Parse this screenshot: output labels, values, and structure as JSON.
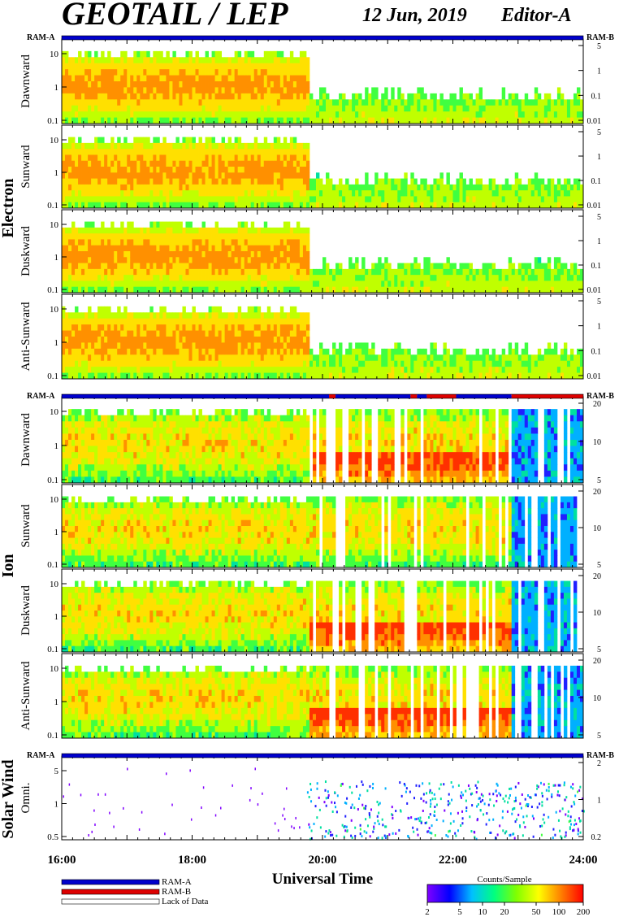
{
  "header": {
    "title": "GEOTAIL / LEP",
    "date": "12 Jun, 2019",
    "editor": "Editor-A"
  },
  "ram_labels": {
    "ram_a": "RAM-A",
    "ram_b": "RAM-B"
  },
  "groups": [
    {
      "id": "electron",
      "label": "Electron"
    },
    {
      "id": "ion",
      "label": "Ion"
    },
    {
      "id": "solarwind",
      "label": "Solar Wind"
    }
  ],
  "chart_data": {
    "type": "heatmap",
    "xlabel": "Universal Time",
    "x_ticks": [
      "16:00",
      "18:00",
      "20:00",
      "22:00",
      "24:00"
    ],
    "x_range_hours": [
      16,
      24
    ],
    "panels": [
      {
        "group": "electron",
        "direction": "Dawnward",
        "left_ticks": [
          "10",
          "1",
          "0.1"
        ],
        "right_ticks": [
          "5",
          "1",
          "0.1",
          "0.01"
        ]
      },
      {
        "group": "electron",
        "direction": "Sunward",
        "left_ticks": [
          "10",
          "1",
          "0.1"
        ],
        "right_ticks": [
          "5",
          "1",
          "0.1",
          "0.01"
        ]
      },
      {
        "group": "electron",
        "direction": "Duskward",
        "left_ticks": [
          "10",
          "1",
          "0.1"
        ],
        "right_ticks": [
          "5",
          "1",
          "0.1",
          "0.01"
        ]
      },
      {
        "group": "electron",
        "direction": "Anti-Sunward",
        "left_ticks": [
          "10",
          "1",
          "0.1"
        ],
        "right_ticks": [
          "5",
          "1",
          "0.1",
          "0.01"
        ]
      },
      {
        "group": "ion",
        "direction": "Dawnward",
        "left_ticks": [
          "10",
          "1",
          "0.1"
        ],
        "right_ticks": [
          "20",
          "10",
          "5"
        ]
      },
      {
        "group": "ion",
        "direction": "Sunward",
        "left_ticks": [
          "10",
          "1",
          "0.1"
        ],
        "right_ticks": [
          "20",
          "10",
          "5"
        ]
      },
      {
        "group": "ion",
        "direction": "Duskward",
        "left_ticks": [
          "10",
          "1",
          "0.1"
        ],
        "right_ticks": [
          "20",
          "10",
          "5"
        ]
      },
      {
        "group": "ion",
        "direction": "Anti-Sunward",
        "left_ticks": [
          "10",
          "1",
          "0.1"
        ],
        "right_ticks": [
          "20",
          "10",
          "5"
        ]
      },
      {
        "group": "solarwind",
        "direction": "Omni.",
        "left_ticks": [
          "5",
          "1",
          "0.5"
        ],
        "right_ticks": [
          "2",
          "1",
          "0.2"
        ]
      }
    ],
    "ram_state": {
      "electron": [
        {
          "from": 16,
          "to": 24,
          "mode": "RAM-A"
        }
      ],
      "ion": [
        {
          "from": 16,
          "to": 20.1,
          "mode": "RAM-A"
        },
        {
          "from": 20.1,
          "to": 20.2,
          "mode": "RAM-B"
        },
        {
          "from": 20.2,
          "to": 21.35,
          "mode": "RAM-A"
        },
        {
          "from": 21.35,
          "to": 21.45,
          "mode": "RAM-B"
        },
        {
          "from": 21.45,
          "to": 21.6,
          "mode": "RAM-A"
        },
        {
          "from": 21.6,
          "to": 22.05,
          "mode": "RAM-B"
        },
        {
          "from": 22.05,
          "to": 22.9,
          "mode": "RAM-A"
        },
        {
          "from": 22.9,
          "to": 24,
          "mode": "RAM-B"
        }
      ],
      "solarwind": [
        {
          "from": 16,
          "to": 24,
          "mode": "RAM-A"
        }
      ]
    },
    "legend": {
      "ram_a": "RAM-A",
      "ram_b": "RAM-B",
      "lack": "Lack of Data"
    },
    "colorbar": {
      "title": "Counts/Sample",
      "ticks": [
        "2",
        "5",
        "10",
        "20",
        "50",
        "100",
        "200"
      ],
      "colors": [
        "#8000ff",
        "#0000ff",
        "#00c0ff",
        "#00ff80",
        "#80ff00",
        "#ffff00",
        "#ff8000",
        "#ff0000"
      ]
    },
    "colors": {
      "ram_a": "#0000cc",
      "ram_b": "#dd0000"
    }
  }
}
